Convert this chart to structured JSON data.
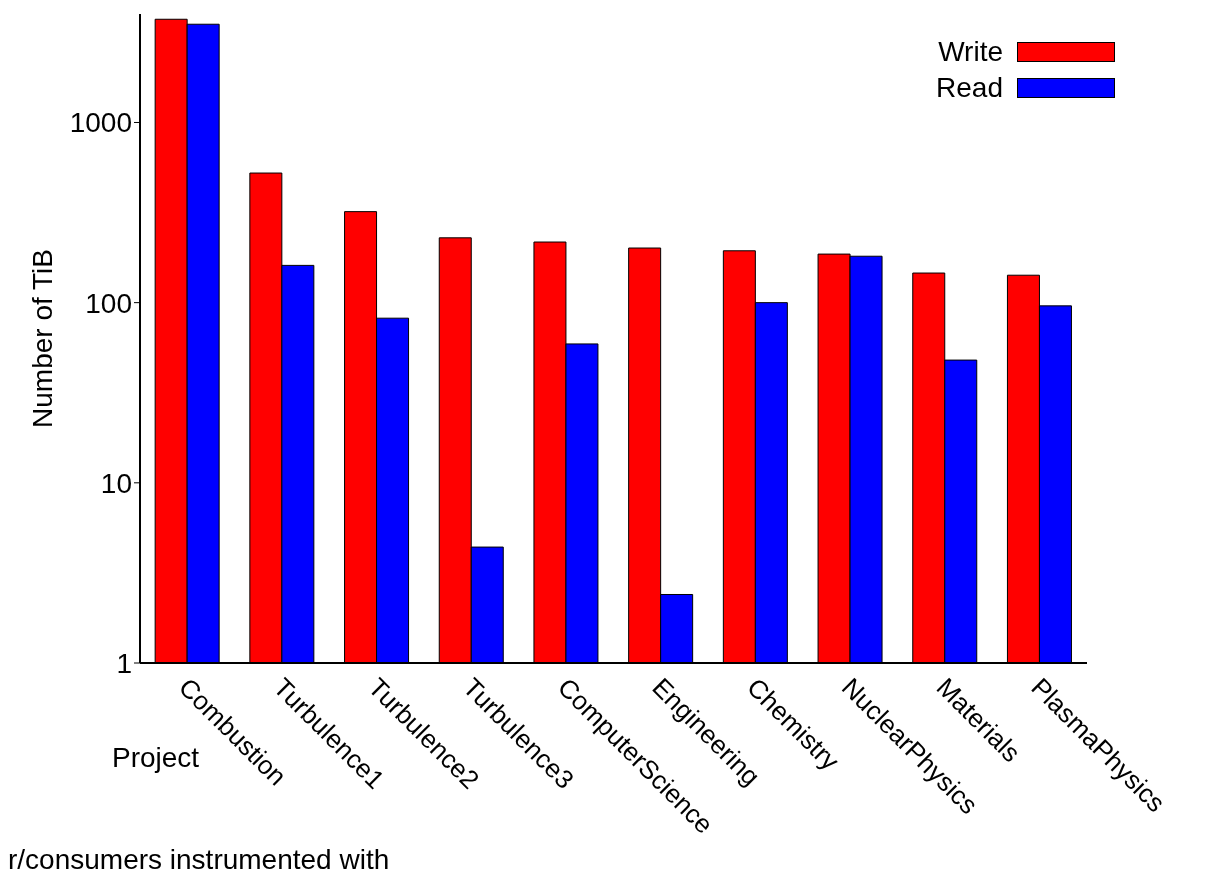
{
  "chart_data": {
    "type": "bar",
    "xlabel": "Project",
    "ylabel": "Number of TiB",
    "categories": [
      "Combustion",
      "Turbulence1",
      "Turbulence2",
      "Turbulence3",
      "ComputerScience",
      "Engineering",
      "Chemistry",
      "NuclearPhysics",
      "Materials",
      "PlasmaPhysics"
    ],
    "series": [
      {
        "name": "Write",
        "color": "#ff0000",
        "values": [
          3740,
          524,
          320,
          229,
          217,
          201,
          194,
          186,
          146,
          142
        ]
      },
      {
        "name": "Read",
        "color": "#0000ff",
        "values": [
          3510,
          161,
          82,
          4.4,
          59,
          2.4,
          100,
          181,
          48,
          96
        ]
      }
    ],
    "log": "y",
    "ylim": [
      1,
      4000
    ],
    "yticks": [
      1,
      10,
      100,
      1000
    ],
    "legend": "top right",
    "annotations": [
      "r/consumers instrumented with"
    ]
  }
}
